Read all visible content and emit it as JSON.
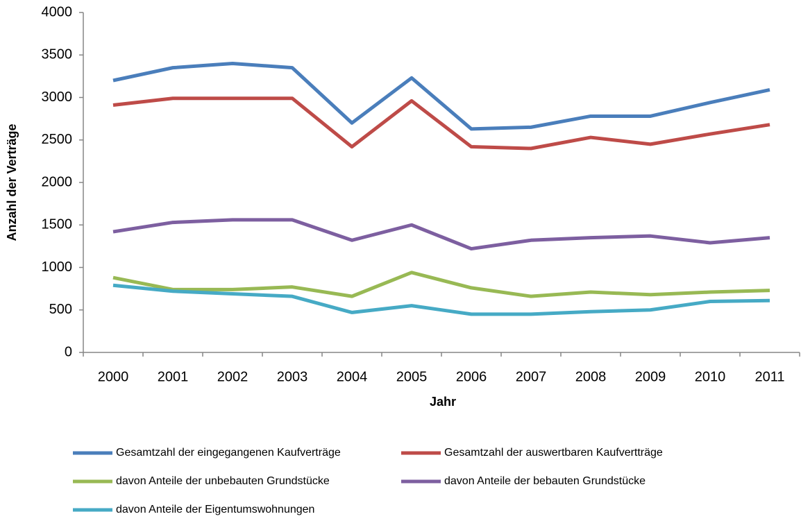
{
  "chart_data": {
    "type": "line",
    "y_label": "Anzahl der Verträge",
    "x_label": "Jahr",
    "categories": [
      "2000",
      "2001",
      "2002",
      "2003",
      "2004",
      "2005",
      "2006",
      "2007",
      "2008",
      "2009",
      "2010",
      "2011"
    ],
    "series": [
      {
        "name": "Gesamtzahl der eingegangenen Kaufverträge",
        "color": "#4a7ebb",
        "values": [
          3200,
          3350,
          3400,
          3350,
          2700,
          3230,
          2630,
          2650,
          2780,
          2780,
          2940,
          3090
        ]
      },
      {
        "name": "Gesamtzahl der auswertbaren Kaufvertträge",
        "color": "#be4b48",
        "values": [
          2910,
          2990,
          2990,
          2990,
          2420,
          2960,
          2420,
          2400,
          2530,
          2450,
          2570,
          2680
        ]
      },
      {
        "name": "davon Anteile der unbebauten Grundstücke",
        "color": "#98b954",
        "values": [
          880,
          740,
          740,
          770,
          660,
          940,
          760,
          660,
          710,
          680,
          710,
          730
        ]
      },
      {
        "name": "davon Anteile der bebauten Grundstücke",
        "color": "#7d5fa0",
        "values": [
          1420,
          1530,
          1560,
          1560,
          1320,
          1500,
          1220,
          1320,
          1350,
          1370,
          1290,
          1350
        ]
      },
      {
        "name": "davon Anteile der Eigentumswohnungen",
        "color": "#46aac5",
        "values": [
          790,
          720,
          690,
          660,
          470,
          550,
          450,
          450,
          480,
          500,
          600,
          610
        ]
      }
    ],
    "ylim": [
      0,
      4000
    ],
    "yticks": [
      0,
      500,
      1000,
      1500,
      2000,
      2500,
      3000,
      3500,
      4000
    ],
    "grid": false,
    "legend": "bottom"
  }
}
